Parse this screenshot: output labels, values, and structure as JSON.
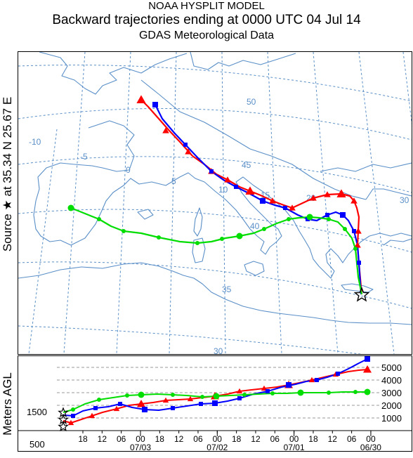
{
  "header": {
    "line1": "NOAA HYSPLIT MODEL",
    "line2": "Backward trajectories ending at 0000 UTC 04 Jul 14",
    "line3": "GDAS  Meteorological Data"
  },
  "source_label": "Source ★ at   35.34 N   25.67 E",
  "height_axis_label": "Meters AGL",
  "map": {
    "latitude_labels": [
      "50",
      "45",
      "40",
      "35",
      "30"
    ],
    "longitude_labels": [
      "-10",
      "-5",
      "0",
      "5",
      "10",
      "15",
      "20",
      "30"
    ],
    "source_marker": "star",
    "colors": {
      "red": "#ff0000",
      "blue": "#0000ff",
      "green": "#00dd00",
      "grid": "#5a8fc8",
      "coast": "#5a8fc8"
    }
  },
  "height_panel": {
    "y_ticks": [
      "5000",
      "4000",
      "3000",
      "2000",
      "1000"
    ],
    "start_levels": [
      "1500",
      "500"
    ],
    "x_ticks": [
      "18",
      "12",
      "06",
      "00",
      "18",
      "12",
      "06",
      "00",
      "18",
      "12",
      "06",
      "00",
      "18",
      "12",
      "06",
      "00"
    ],
    "date_labels": [
      "07/03",
      "07/02",
      "07/01",
      "06/30"
    ]
  }
}
